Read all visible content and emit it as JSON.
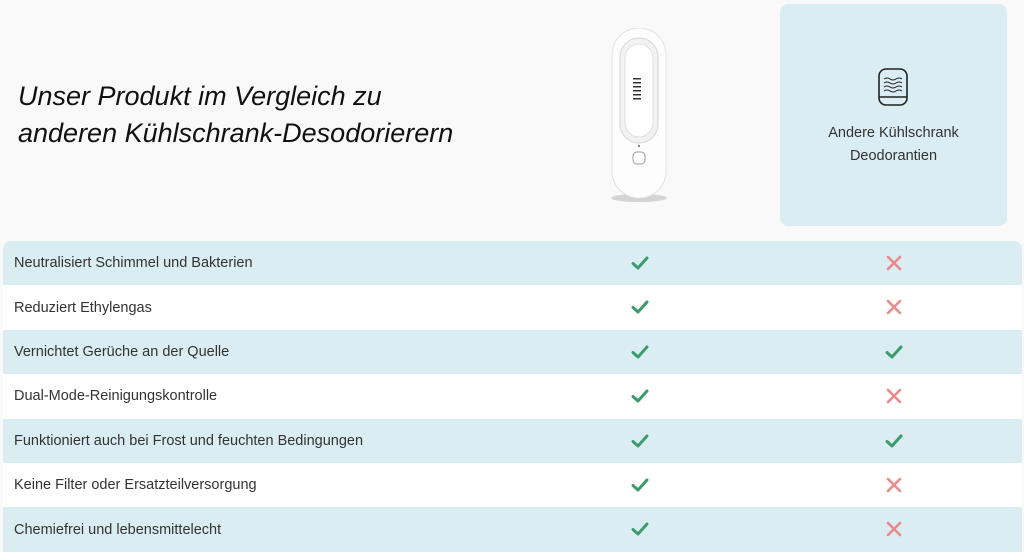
{
  "title_lines": [
    "Unser Produkt im Vergleich zu",
    "anderen Kühlschrank-Desodorierern"
  ],
  "other_column": {
    "label_lines": [
      "Andere Kühlschrank",
      "Deodorantien"
    ],
    "icon": "filter-cartridge-icon"
  },
  "colors": {
    "check": "#3d9b6b",
    "cross": "#e98b8b",
    "row_highlight": "#daedf3"
  },
  "rows": [
    {
      "feature": "Neutralisiert Schimmel und Bakterien",
      "ours": true,
      "other": false
    },
    {
      "feature": "Reduziert Ethylengas",
      "ours": true,
      "other": false
    },
    {
      "feature": "Vernichtet Gerüche an der Quelle",
      "ours": true,
      "other": true
    },
    {
      "feature": "Dual-Mode-Reinigungskontrolle",
      "ours": true,
      "other": false
    },
    {
      "feature": "Funktioniert auch bei Frost und feuchten Bedingungen",
      "ours": true,
      "other": true
    },
    {
      "feature": "Keine Filter oder Ersatzteilversorgung",
      "ours": true,
      "other": false
    },
    {
      "feature": "Chemiefrei und lebensmittelecht",
      "ours": true,
      "other": false
    }
  ]
}
